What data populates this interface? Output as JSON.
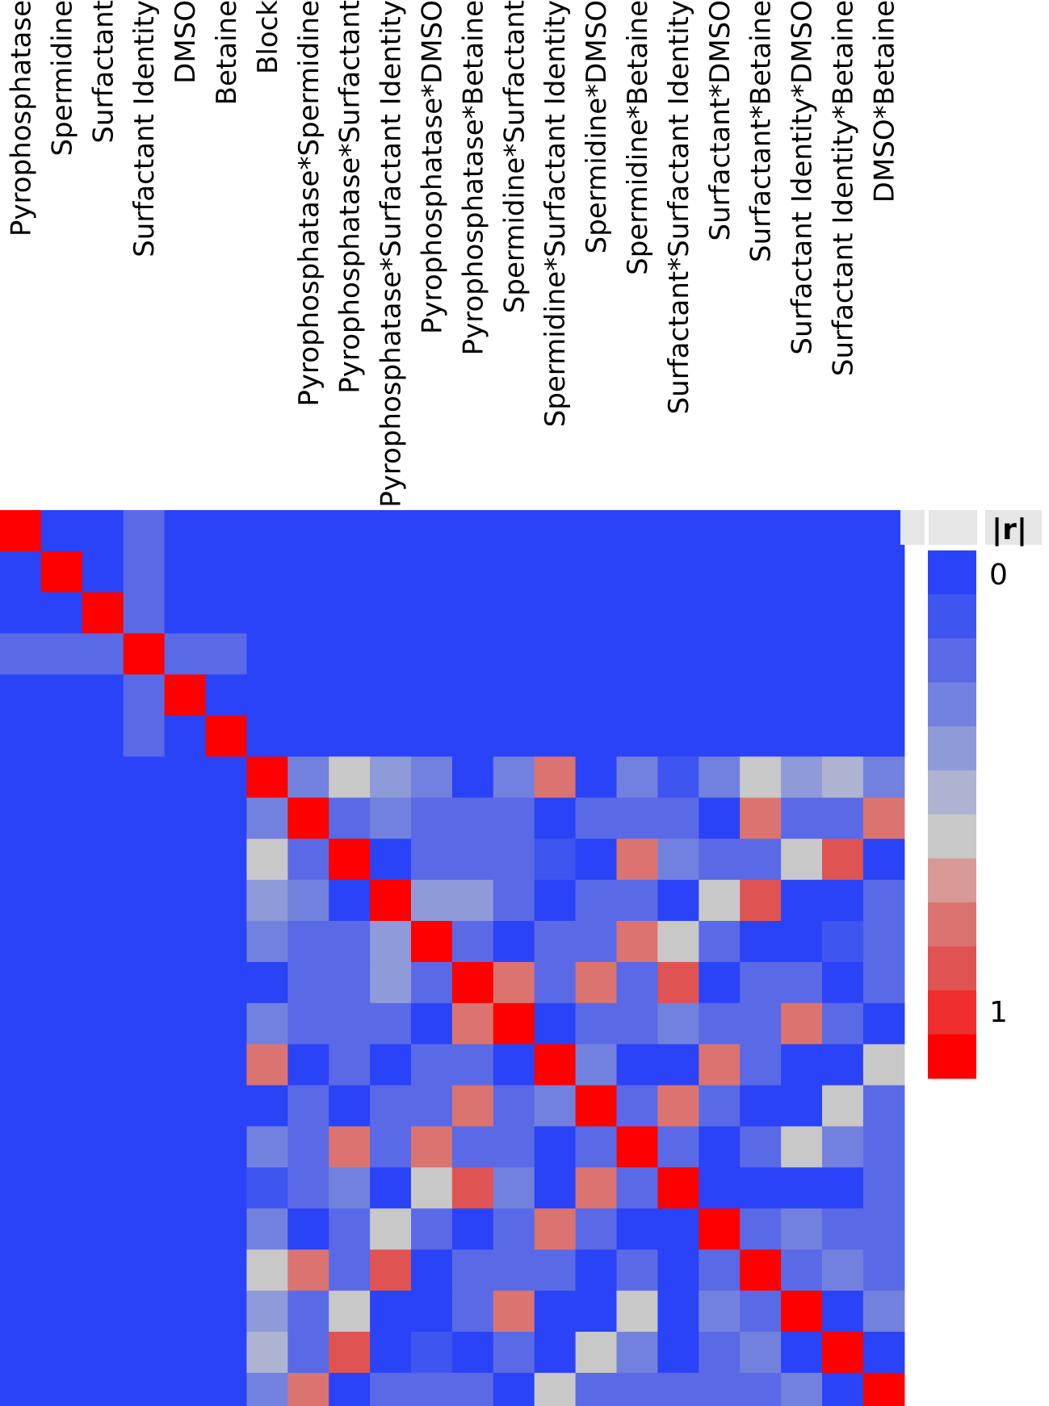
{
  "chart_data": {
    "type": "heatmap",
    "title": "",
    "legend": {
      "title": "|r|",
      "min_label": "0",
      "max_label": "1",
      "colors": [
        "#2a43f6",
        "#3f55f0",
        "#5a6ae6",
        "#7381de",
        "#8f9ad8",
        "#aeb3d2",
        "#c8c8c8",
        "#d79a97",
        "#db7470",
        "#e05353",
        "#ef2e2e",
        "#ff0000"
      ]
    },
    "columns": [
      "Pyrophosphatase",
      "Spermidine",
      "Surfactant",
      "Surfactant Identity",
      "DMSO",
      "Betaine",
      "Block",
      "Pyrophosphatase*Spermidine",
      "Pyrophosphatase*Surfactant",
      "Pyrophosphatase*Surfactant Identity",
      "Pyrophosphatase*DMSO",
      "Pyrophosphatase*Betaine",
      "Spermidine*Surfactant",
      "Spermidine*Surfactant Identity",
      "Spermidine*DMSO",
      "Spermidine*Betaine",
      "Surfactant*Surfactant Identity",
      "Surfactant*DMSO",
      "Surfactant*Betaine",
      "Surfactant Identity*DMSO",
      "Surfactant Identity*Betaine",
      "DMSO*Betaine"
    ],
    "values": [
      [
        1,
        0,
        0,
        0.2,
        0,
        0,
        0,
        0,
        0,
        0,
        0,
        0,
        0,
        0,
        0,
        0,
        0,
        0,
        0,
        0,
        0,
        0
      ],
      [
        0,
        1,
        0,
        0.2,
        0,
        0,
        0,
        0,
        0,
        0,
        0,
        0,
        0,
        0,
        0,
        0,
        0,
        0,
        0,
        0,
        0,
        0
      ],
      [
        0,
        0,
        1,
        0.2,
        0,
        0,
        0,
        0,
        0,
        0,
        0,
        0,
        0,
        0,
        0,
        0,
        0,
        0,
        0,
        0,
        0,
        0
      ],
      [
        0.2,
        0.2,
        0.2,
        1,
        0.2,
        0.2,
        0,
        0,
        0,
        0,
        0,
        0,
        0,
        0,
        0,
        0,
        0,
        0,
        0,
        0,
        0,
        0
      ],
      [
        0,
        0,
        0,
        0.2,
        1,
        0,
        0,
        0,
        0,
        0,
        0,
        0,
        0,
        0,
        0,
        0,
        0,
        0,
        0,
        0,
        0,
        0
      ],
      [
        0,
        0,
        0,
        0.2,
        0,
        1,
        0,
        0,
        0,
        0,
        0,
        0,
        0,
        0,
        0,
        0,
        0,
        0,
        0,
        0,
        0,
        0
      ],
      [
        0,
        0,
        0,
        0,
        0,
        0,
        1,
        0.3,
        0.55,
        0.4,
        0.3,
        0,
        0.25,
        0.7,
        0,
        0.3,
        0.1,
        0.25,
        0.55,
        0.35,
        0.45,
        0.3
      ],
      [
        0,
        0,
        0,
        0,
        0,
        0,
        0.3,
        1,
        0.15,
        0.3,
        0.15,
        0.15,
        0.15,
        0,
        0.15,
        0.15,
        0.15,
        0,
        0.7,
        0.15,
        0.15,
        0.7
      ],
      [
        0,
        0,
        0,
        0,
        0,
        0,
        0.55,
        0.15,
        1,
        0,
        0.15,
        0.15,
        0.15,
        0.1,
        0,
        0.7,
        0.3,
        0.15,
        0.15,
        0.5,
        0.8,
        0
      ],
      [
        0,
        0,
        0,
        0,
        0,
        0,
        0.4,
        0.3,
        0,
        1,
        0.35,
        0.35,
        0.15,
        0,
        0.15,
        0.15,
        0,
        0.5,
        0.8,
        0,
        0,
        0.15
      ],
      [
        0,
        0,
        0,
        0,
        0,
        0,
        0.3,
        0.15,
        0.15,
        0.35,
        1,
        0.15,
        0,
        0.15,
        0.15,
        0.7,
        0.5,
        0.15,
        0,
        0,
        0.1,
        0.15
      ],
      [
        0,
        0,
        0,
        0,
        0,
        0,
        0,
        0.15,
        0.15,
        0.35,
        0.15,
        1,
        0.7,
        0.15,
        0.7,
        0.15,
        0.8,
        0,
        0.15,
        0.15,
        0,
        0.15
      ],
      [
        0,
        0,
        0,
        0,
        0,
        0,
        0.3,
        0.15,
        0.15,
        0.15,
        0,
        0.7,
        1,
        0,
        0.15,
        0.15,
        0.3,
        0.15,
        0.15,
        0.75,
        0.15,
        0
      ],
      [
        0,
        0,
        0,
        0,
        0,
        0,
        0.7,
        0,
        0.15,
        0,
        0.15,
        0.15,
        0,
        1,
        0.3,
        0,
        0,
        0.75,
        0.15,
        0,
        0,
        0.5
      ],
      [
        0,
        0,
        0,
        0,
        0,
        0,
        0,
        0.15,
        0,
        0.15,
        0.15,
        0.7,
        0.15,
        0.3,
        1,
        0.15,
        0.75,
        0.15,
        0,
        0,
        0.5,
        0.15
      ],
      [
        0,
        0,
        0,
        0,
        0,
        0,
        0.3,
        0.15,
        0.7,
        0.15,
        0.7,
        0.15,
        0.15,
        0,
        0.15,
        1,
        0.15,
        0,
        0.15,
        0.5,
        0.3,
        0.15
      ],
      [
        0,
        0,
        0,
        0,
        0,
        0,
        0.1,
        0.15,
        0.3,
        0,
        0.5,
        0.8,
        0.3,
        0,
        0.75,
        0.15,
        1,
        0,
        0,
        0,
        0,
        0.15
      ],
      [
        0,
        0,
        0,
        0,
        0,
        0,
        0.25,
        0,
        0.15,
        0.5,
        0.15,
        0,
        0.15,
        0.75,
        0.15,
        0,
        0,
        1,
        0.15,
        0.3,
        0.15,
        0.15
      ],
      [
        0,
        0,
        0,
        0,
        0,
        0,
        0.55,
        0.7,
        0.15,
        0.8,
        0,
        0.15,
        0.15,
        0.15,
        0,
        0.15,
        0,
        0.15,
        1,
        0.15,
        0.3,
        0.15
      ],
      [
        0,
        0,
        0,
        0,
        0,
        0,
        0.35,
        0.15,
        0.5,
        0,
        0,
        0.15,
        0.75,
        0,
        0,
        0.5,
        0,
        0.3,
        0.15,
        1,
        0,
        0.3
      ],
      [
        0,
        0,
        0,
        0,
        0,
        0,
        0.45,
        0.15,
        0.8,
        0,
        0.1,
        0,
        0.15,
        0,
        0.5,
        0.3,
        0,
        0.15,
        0.3,
        0,
        1,
        0
      ],
      [
        0,
        0,
        0,
        0,
        0,
        0,
        0.3,
        0.7,
        0,
        0.15,
        0.15,
        0.15,
        0,
        0.5,
        0.15,
        0.15,
        0.15,
        0.15,
        0.15,
        0.3,
        0,
        1
      ]
    ]
  }
}
